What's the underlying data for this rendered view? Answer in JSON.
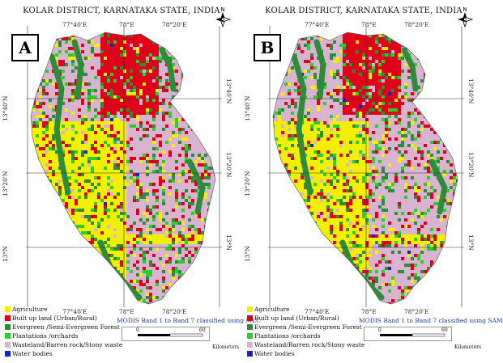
{
  "panels": [
    {
      "letter": "A",
      "title": "KOLAR DISTRICT, KARNATAKA STATE, INDIA",
      "caption": "MODIS Band 1 to Band 7 classified using MLC"
    },
    {
      "letter": "B",
      "title": "KOLAR DISTRICT, KARNATAKA STATE, INDIA",
      "caption": "MODIS Band 1 to Band 7 classified using SAM"
    }
  ],
  "axes": {
    "longitude_ticks": [
      "77°40'E",
      "78°E",
      "78°20'E"
    ],
    "latitude_ticks": [
      "13°40'N",
      "13°20'N",
      "13°N"
    ]
  },
  "compass": {
    "icon": "north-arrow-icon",
    "label": "N"
  },
  "legend": [
    {
      "label": "Agriculture",
      "color": "#f2f000"
    },
    {
      "label": "Built up land (Urban/Rural)",
      "color": "#e0001a"
    },
    {
      "label": "Evergreen /Semi-Evergreen Forest",
      "color": "#2e8b3a"
    },
    {
      "label": "Plantations /orchards",
      "color": "#27d12a"
    },
    {
      "label": "Wasteland/Barren rock/Stony waste",
      "color": "#d8b4d0"
    },
    {
      "label": "Water bodies",
      "color": "#1a23b8"
    }
  ],
  "scale": {
    "start": "0",
    "end": "60",
    "unit": "Kilometers"
  }
}
